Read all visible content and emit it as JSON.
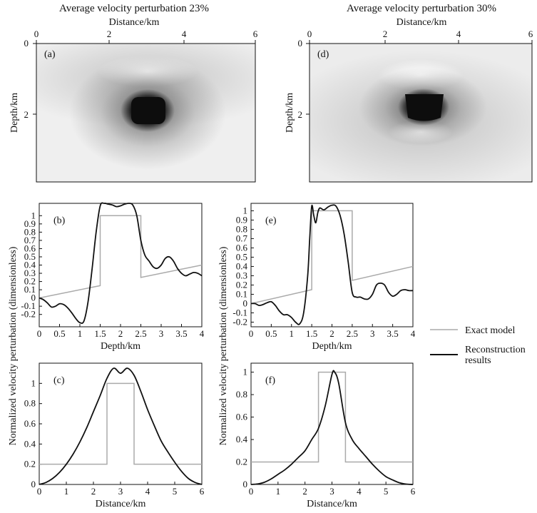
{
  "chart_data": [
    {
      "id": "a",
      "type": "heatmap",
      "panel_label": "(a)",
      "title": "Average velocity perturbation  23%",
      "xlabel": "Distance/km",
      "ylabel": "Depth/km",
      "xlim": [
        0,
        6
      ],
      "ylim": [
        0,
        4
      ],
      "x_ticks": [
        "0",
        "2",
        "4",
        "6"
      ],
      "y_ticks": [
        "0",
        "2"
      ],
      "anomaly": {
        "x_center_km": 3.0,
        "depth_center_km": 1.85,
        "strength": 1.0
      },
      "colors": {
        "high": "#111111",
        "background": "#f2f2f2"
      }
    },
    {
      "id": "d",
      "type": "heatmap",
      "panel_label": "(d)",
      "title": "Average velocity perturbation  30%",
      "xlabel": "Distance/km",
      "ylabel": "Depth/km",
      "xlim": [
        0,
        6
      ],
      "ylim": [
        0,
        4
      ],
      "x_ticks": [
        "0",
        "2",
        "4",
        "6"
      ],
      "y_ticks": [
        "0",
        "2"
      ],
      "anomaly": {
        "x_center_km": 3.0,
        "depth_center_km": 1.75,
        "strength": 1.0
      },
      "colors": {
        "high": "#111111",
        "background": "#f2f2f2"
      }
    },
    {
      "id": "b",
      "type": "line",
      "panel_label": "(b)",
      "xlabel": "Depth/km",
      "xlim": [
        0,
        4
      ],
      "ylim": [
        -0.35,
        1.15
      ],
      "x_ticks": [
        0,
        0.5,
        1,
        1.5,
        2,
        2.5,
        3,
        3.5,
        4
      ],
      "y_ticks": [
        -0.2,
        -0.1,
        0,
        0.1,
        0.2,
        0.3,
        0.4,
        0.5,
        0.6,
        0.7,
        0.8,
        0.9,
        1
      ],
      "y_ticklabels": [
        "-0.2",
        "-0.1",
        "0",
        "0.1",
        "0.2",
        "0.3",
        "0.4",
        "0.5",
        "0.6",
        "0.7",
        "0.8",
        "0.9",
        "1"
      ],
      "series": [
        {
          "name": "Exact model",
          "color": "#aaaaaa",
          "x": [
            0,
            1.5,
            1.5,
            2.5,
            2.5,
            4
          ],
          "y": [
            0,
            0.15,
            1.0,
            1.0,
            0.25,
            0.4
          ]
        },
        {
          "name": "Reconstruction results",
          "color": "#111111",
          "x": [
            0,
            0.1,
            0.2,
            0.3,
            0.4,
            0.5,
            0.6,
            0.7,
            0.8,
            0.9,
            1.0,
            1.1,
            1.2,
            1.3,
            1.4,
            1.5,
            1.6,
            1.7,
            1.8,
            1.9,
            2.0,
            2.1,
            2.2,
            2.3,
            2.4,
            2.5,
            2.6,
            2.7,
            2.8,
            2.9,
            3.0,
            3.1,
            3.2,
            3.3,
            3.4,
            3.5,
            3.6,
            3.7,
            3.8,
            3.9,
            4.0
          ],
          "y": [
            0,
            -0.02,
            -0.06,
            -0.11,
            -0.1,
            -0.07,
            -0.08,
            -0.12,
            -0.18,
            -0.25,
            -0.3,
            -0.28,
            -0.05,
            0.35,
            0.8,
            1.12,
            1.15,
            1.14,
            1.13,
            1.11,
            1.12,
            1.14,
            1.15,
            1.13,
            1.0,
            0.7,
            0.52,
            0.45,
            0.38,
            0.36,
            0.4,
            0.48,
            0.5,
            0.45,
            0.36,
            0.3,
            0.27,
            0.29,
            0.31,
            0.3,
            0.27
          ]
        }
      ]
    },
    {
      "id": "e",
      "type": "line",
      "panel_label": "(e)",
      "xlabel": "Depth/km",
      "xlim": [
        0,
        4
      ],
      "ylim": [
        -0.25,
        1.08
      ],
      "x_ticks": [
        0,
        0.5,
        1,
        1.5,
        2,
        2.5,
        3,
        3.5,
        4
      ],
      "y_ticks": [
        -0.2,
        -0.1,
        0,
        0.1,
        0.2,
        0.3,
        0.4,
        0.5,
        0.6,
        0.7,
        0.8,
        0.9,
        1
      ],
      "y_ticklabels": [
        "-0.2",
        "-0.1",
        "0",
        "0.1",
        "0.2",
        "0.3",
        "0.4",
        "0.5",
        "0.6",
        "0.7",
        "0.8",
        "0.9",
        "1"
      ],
      "series": [
        {
          "name": "Exact model",
          "color": "#aaaaaa",
          "x": [
            0,
            1.5,
            1.5,
            2.5,
            2.5,
            4
          ],
          "y": [
            0,
            0.15,
            1.0,
            1.0,
            0.25,
            0.4
          ]
        },
        {
          "name": "Reconstruction results",
          "color": "#111111",
          "x": [
            0,
            0.1,
            0.2,
            0.3,
            0.4,
            0.5,
            0.6,
            0.7,
            0.8,
            0.9,
            1.0,
            1.1,
            1.2,
            1.3,
            1.4,
            1.45,
            1.5,
            1.55,
            1.6,
            1.65,
            1.7,
            1.8,
            1.9,
            2.0,
            2.1,
            2.2,
            2.3,
            2.4,
            2.5,
            2.6,
            2.7,
            2.8,
            2.9,
            3.0,
            3.1,
            3.2,
            3.3,
            3.4,
            3.5,
            3.6,
            3.7,
            3.8,
            3.9,
            4.0
          ],
          "y": [
            0,
            0,
            -0.02,
            -0.01,
            0.01,
            0.02,
            -0.02,
            -0.08,
            -0.12,
            -0.12,
            -0.15,
            -0.2,
            -0.22,
            -0.1,
            0.3,
            0.7,
            1.05,
            0.95,
            0.87,
            0.98,
            1.03,
            1.01,
            1.04,
            1.06,
            1.05,
            0.95,
            0.75,
            0.45,
            0.12,
            0.07,
            0.07,
            0.05,
            0.05,
            0.1,
            0.2,
            0.22,
            0.2,
            0.12,
            0.08,
            0.1,
            0.14,
            0.15,
            0.14,
            0.14
          ]
        }
      ]
    },
    {
      "id": "c",
      "type": "line",
      "panel_label": "(c)",
      "xlabel": "Distance/km",
      "xlim": [
        0,
        6
      ],
      "ylim": [
        0,
        1.2
      ],
      "x_ticks": [
        0,
        1,
        2,
        3,
        4,
        5,
        6
      ],
      "y_ticks": [
        0,
        0.2,
        0.4,
        0.6,
        0.8,
        1
      ],
      "y_ticklabels": [
        "0",
        "0.2",
        "0.4",
        "0.6",
        "0.8",
        "1"
      ],
      "series": [
        {
          "name": "Exact model",
          "color": "#aaaaaa",
          "x": [
            0,
            2.5,
            2.5,
            3.5,
            3.5,
            6
          ],
          "y": [
            0.2,
            0.2,
            1.0,
            1.0,
            0.2,
            0.2
          ]
        },
        {
          "name": "Reconstruction results",
          "color": "#111111",
          "x": [
            0,
            0.25,
            0.5,
            0.75,
            1.0,
            1.25,
            1.5,
            1.75,
            2.0,
            2.25,
            2.5,
            2.75,
            3.0,
            3.25,
            3.5,
            3.75,
            4.0,
            4.25,
            4.5,
            4.75,
            5.0,
            5.25,
            5.5,
            5.75,
            6.0
          ],
          "y": [
            0,
            0.02,
            0.06,
            0.12,
            0.2,
            0.3,
            0.42,
            0.56,
            0.72,
            0.88,
            1.05,
            1.15,
            1.1,
            1.15,
            1.08,
            0.92,
            0.74,
            0.58,
            0.43,
            0.32,
            0.22,
            0.13,
            0.06,
            0.02,
            0
          ]
        }
      ]
    },
    {
      "id": "f",
      "type": "line",
      "panel_label": "(f)",
      "xlabel": "Distance/km",
      "xlim": [
        0,
        6
      ],
      "ylim": [
        0,
        1.08
      ],
      "x_ticks": [
        0,
        1,
        2,
        3,
        4,
        5,
        6
      ],
      "y_ticks": [
        0,
        0.2,
        0.4,
        0.6,
        0.8,
        1
      ],
      "y_ticklabels": [
        "0",
        "0.2",
        "0.4",
        "0.6",
        "0.8",
        "1"
      ],
      "series": [
        {
          "name": "Exact model",
          "color": "#aaaaaa",
          "x": [
            0,
            2.5,
            2.5,
            3.5,
            3.5,
            6
          ],
          "y": [
            0.2,
            0.2,
            1.0,
            1.0,
            0.2,
            0.2
          ]
        },
        {
          "name": "Reconstruction results",
          "color": "#111111",
          "x": [
            0,
            0.25,
            0.5,
            0.75,
            1.0,
            1.25,
            1.5,
            1.75,
            2.0,
            2.25,
            2.5,
            2.75,
            3.0,
            3.1,
            3.25,
            3.5,
            3.75,
            4.0,
            4.25,
            4.5,
            4.75,
            5.0,
            5.25,
            5.5,
            5.75,
            6.0
          ],
          "y": [
            0,
            0.005,
            0.02,
            0.05,
            0.09,
            0.13,
            0.18,
            0.24,
            0.3,
            0.4,
            0.5,
            0.7,
            0.98,
            1.0,
            0.9,
            0.55,
            0.4,
            0.32,
            0.25,
            0.18,
            0.12,
            0.07,
            0.04,
            0.015,
            0.003,
            0
          ]
        }
      ]
    }
  ],
  "shared": {
    "ylabel_lines": "Normalized velocity perturbation (dimensionless)"
  },
  "legend": {
    "items": [
      {
        "label": "Exact model",
        "color": "#aaaaaa"
      },
      {
        "label_line1": "Reconstruction",
        "label_line2": "results",
        "color": "#111111"
      }
    ]
  }
}
